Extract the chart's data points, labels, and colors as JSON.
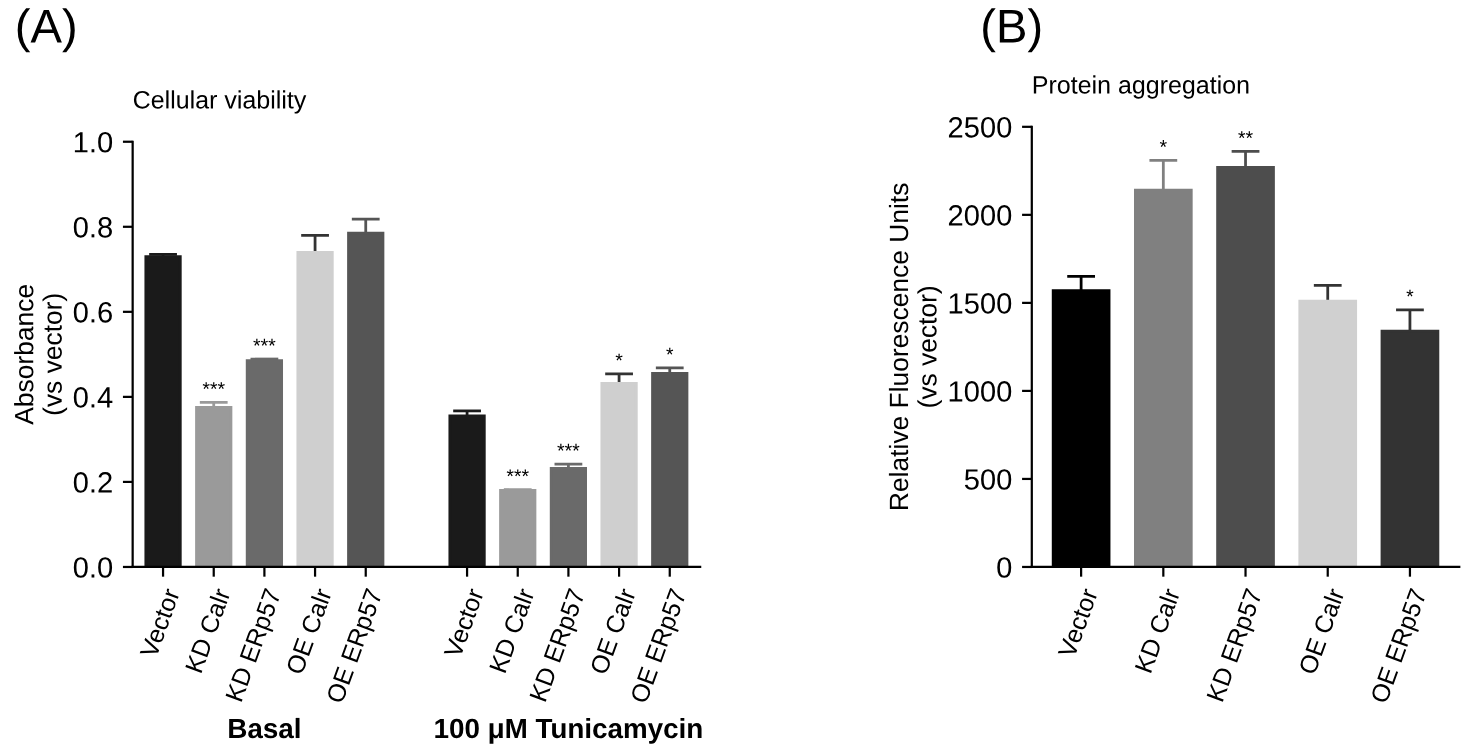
{
  "chart_data": [
    {
      "type": "bar",
      "title": "Cellular viability",
      "ylabel": "Absorbance\n(vs vector)",
      "annotations": [
        "(A)",
        "Basal",
        "100 μM Tunicamycin"
      ],
      "categories": [
        "Vector",
        "KD Calr",
        "KD ERp57",
        "OE Calr",
        "OE ERp57",
        null,
        "Vector",
        "KD Calr",
        "KD ERp57",
        "OE Calr",
        "OE ERp57"
      ],
      "values": [
        0.73,
        0.375,
        0.485,
        0.74,
        0.785,
        null,
        0.355,
        0.18,
        0.232,
        0.432,
        0.455
      ],
      "errors": [
        0.005,
        0.012,
        0.004,
        0.04,
        0.033,
        null,
        0.012,
        0.002,
        0.01,
        0.022,
        0.013
      ],
      "value_labels": [
        null,
        "***",
        "***",
        null,
        null,
        null,
        null,
        "***",
        "***",
        "*",
        "*"
      ],
      "colors": [
        "#1a1a1a",
        "#9a9a9a",
        "#6a6a6a",
        "#cfcfcf",
        "#555555",
        "#ffffff",
        "#1a1a1a",
        "#9a9a9a",
        "#6a6a6a",
        "#cfcfcf",
        "#555555"
      ],
      "ylim": [
        0,
        1.0
      ],
      "yticks": [
        {
          "value": 0,
          "label": "0.0"
        },
        {
          "value": 0.2,
          "label": "0.2"
        },
        {
          "value": 0.4,
          "label": "0.4"
        },
        {
          "value": 0.6,
          "label": "0.6"
        },
        {
          "value": 0.8,
          "label": "0.8"
        },
        {
          "value": 1.0,
          "label": "1.0"
        }
      ],
      "grid": false,
      "legend": false
    },
    {
      "type": "bar",
      "title": "Protein aggregation",
      "ylabel": "Relative Fluorescence Units\n(vs vector)",
      "annotations": [
        "(B)"
      ],
      "categories": [
        "Vector",
        "KD Calr",
        "KD ERp57",
        "OE Calr",
        "OE ERp57"
      ],
      "values": [
        1570,
        2140,
        2270,
        1510,
        1340
      ],
      "errors": [
        80,
        170,
        90,
        90,
        120
      ],
      "value_labels": [
        null,
        "*",
        "**",
        null,
        "*"
      ],
      "colors": [
        "#000000",
        "#808080",
        "#4d4d4d",
        "#d0d0d0",
        "#333333"
      ],
      "ylim": [
        0,
        2500
      ],
      "yticks": [
        0,
        500,
        1000,
        1500,
        2000,
        2500
      ],
      "grid": false,
      "legend": false
    }
  ]
}
